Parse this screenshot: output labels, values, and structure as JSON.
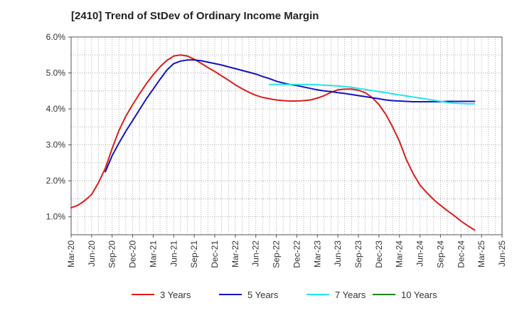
{
  "chart_data": {
    "type": "line",
    "title": "[2410]  Trend of StDev of Ordinary Income Margin",
    "xlabel": "",
    "ylabel": "",
    "x_ticks": [
      "Mar-20",
      "Jun-20",
      "Sep-20",
      "Dec-20",
      "Mar-21",
      "Jun-21",
      "Sep-21",
      "Dec-21",
      "Mar-22",
      "Jun-22",
      "Sep-22",
      "Dec-22",
      "Mar-23",
      "Jun-23",
      "Sep-23",
      "Dec-23",
      "Mar-24",
      "Jun-24",
      "Sep-24",
      "Dec-24",
      "Mar-25",
      "Jun-25"
    ],
    "y_ticks": [
      "1.0%",
      "2.0%",
      "3.0%",
      "4.0%",
      "5.0%",
      "6.0%"
    ],
    "ylim": [
      0.5,
      6.0
    ],
    "grid": true,
    "legend_position": "bottom",
    "series": [
      {
        "name": "3 Years",
        "color": "#dd1c1c",
        "points": [
          [
            "Mar-20",
            1.25
          ],
          [
            "Apr-20",
            1.32
          ],
          [
            "May-20",
            1.45
          ],
          [
            "Jun-20",
            1.62
          ],
          [
            "Jul-20",
            1.95
          ],
          [
            "Aug-20",
            2.35
          ],
          [
            "Sep-20",
            2.9
          ],
          [
            "Oct-20",
            3.4
          ],
          [
            "Nov-20",
            3.8
          ],
          [
            "Dec-20",
            4.12
          ],
          [
            "Jan-21",
            4.42
          ],
          [
            "Feb-21",
            4.7
          ],
          [
            "Mar-21",
            4.95
          ],
          [
            "Apr-21",
            5.17
          ],
          [
            "May-21",
            5.35
          ],
          [
            "Jun-21",
            5.47
          ],
          [
            "Jul-21",
            5.5
          ],
          [
            "Aug-21",
            5.47
          ],
          [
            "Sep-21",
            5.38
          ],
          [
            "Oct-21",
            5.27
          ],
          [
            "Nov-21",
            5.15
          ],
          [
            "Dec-21",
            5.04
          ],
          [
            "Jan-22",
            4.92
          ],
          [
            "Feb-22",
            4.8
          ],
          [
            "Mar-22",
            4.67
          ],
          [
            "Apr-22",
            4.56
          ],
          [
            "May-22",
            4.46
          ],
          [
            "Jun-22",
            4.38
          ],
          [
            "Jul-22",
            4.32
          ],
          [
            "Aug-22",
            4.28
          ],
          [
            "Sep-22",
            4.25
          ],
          [
            "Oct-22",
            4.23
          ],
          [
            "Nov-22",
            4.22
          ],
          [
            "Dec-22",
            4.22
          ],
          [
            "Jan-23",
            4.23
          ],
          [
            "Feb-23",
            4.25
          ],
          [
            "Mar-23",
            4.3
          ],
          [
            "Apr-23",
            4.37
          ],
          [
            "May-23",
            4.46
          ],
          [
            "Jun-23",
            4.53
          ],
          [
            "Jul-23",
            4.55
          ],
          [
            "Aug-23",
            4.55
          ],
          [
            "Sep-23",
            4.52
          ],
          [
            "Oct-23",
            4.45
          ],
          [
            "Nov-23",
            4.32
          ],
          [
            "Dec-23",
            4.12
          ],
          [
            "Jan-24",
            3.85
          ],
          [
            "Feb-24",
            3.5
          ],
          [
            "Mar-24",
            3.1
          ],
          [
            "Apr-24",
            2.6
          ],
          [
            "May-24",
            2.2
          ],
          [
            "Jun-24",
            1.88
          ],
          [
            "Jul-24",
            1.67
          ],
          [
            "Aug-24",
            1.48
          ],
          [
            "Sep-24",
            1.32
          ],
          [
            "Oct-24",
            1.17
          ],
          [
            "Nov-24",
            1.03
          ],
          [
            "Dec-24",
            0.88
          ],
          [
            "Jan-25",
            0.75
          ],
          [
            "Feb-25",
            0.63
          ]
        ]
      },
      {
        "name": "5 Years",
        "color": "#1414c0",
        "points": [
          [
            "Aug-20",
            2.25
          ],
          [
            "Sep-20",
            2.7
          ],
          [
            "Oct-20",
            3.05
          ],
          [
            "Nov-20",
            3.38
          ],
          [
            "Dec-20",
            3.68
          ],
          [
            "Jan-21",
            3.98
          ],
          [
            "Feb-21",
            4.28
          ],
          [
            "Mar-21",
            4.55
          ],
          [
            "Apr-21",
            4.82
          ],
          [
            "May-21",
            5.08
          ],
          [
            "Jun-21",
            5.26
          ],
          [
            "Jul-21",
            5.33
          ],
          [
            "Aug-21",
            5.36
          ],
          [
            "Sep-21",
            5.36
          ],
          [
            "Oct-21",
            5.34
          ],
          [
            "Nov-21",
            5.3
          ],
          [
            "Dec-21",
            5.26
          ],
          [
            "Jan-22",
            5.22
          ],
          [
            "Feb-22",
            5.17
          ],
          [
            "Mar-22",
            5.12
          ],
          [
            "Apr-22",
            5.07
          ],
          [
            "May-22",
            5.02
          ],
          [
            "Jun-22",
            4.97
          ],
          [
            "Jul-22",
            4.9
          ],
          [
            "Aug-22",
            4.84
          ],
          [
            "Sep-22",
            4.77
          ],
          [
            "Oct-22",
            4.72
          ],
          [
            "Nov-22",
            4.68
          ],
          [
            "Dec-22",
            4.65
          ],
          [
            "Jan-23",
            4.61
          ],
          [
            "Feb-23",
            4.57
          ],
          [
            "Mar-23",
            4.53
          ],
          [
            "Apr-23",
            4.5
          ],
          [
            "May-23",
            4.48
          ],
          [
            "Jun-23",
            4.45
          ],
          [
            "Jul-23",
            4.43
          ],
          [
            "Aug-23",
            4.4
          ],
          [
            "Sep-23",
            4.37
          ],
          [
            "Oct-23",
            4.34
          ],
          [
            "Nov-23",
            4.31
          ],
          [
            "Dec-23",
            4.28
          ],
          [
            "Jan-24",
            4.25
          ],
          [
            "Feb-24",
            4.23
          ],
          [
            "Mar-24",
            4.22
          ],
          [
            "Apr-24",
            4.21
          ],
          [
            "May-24",
            4.2
          ],
          [
            "Jun-24",
            4.2
          ],
          [
            "Jul-24",
            4.2
          ],
          [
            "Aug-24",
            4.2
          ],
          [
            "Sep-24",
            4.2
          ],
          [
            "Oct-24",
            4.21
          ],
          [
            "Nov-24",
            4.21
          ],
          [
            "Dec-24",
            4.21
          ],
          [
            "Jan-25",
            4.21
          ],
          [
            "Feb-25",
            4.21
          ]
        ]
      },
      {
        "name": "7 Years",
        "color": "#22e5ee",
        "points": [
          [
            "Aug-22",
            4.68
          ],
          [
            "Sep-22",
            4.68
          ],
          [
            "Oct-22",
            4.68
          ],
          [
            "Nov-22",
            4.68
          ],
          [
            "Dec-22",
            4.68
          ],
          [
            "Jan-23",
            4.68
          ],
          [
            "Feb-23",
            4.68
          ],
          [
            "Mar-23",
            4.67
          ],
          [
            "Apr-23",
            4.66
          ],
          [
            "May-23",
            4.65
          ],
          [
            "Jun-23",
            4.64
          ],
          [
            "Jul-23",
            4.62
          ],
          [
            "Aug-23",
            4.6
          ],
          [
            "Sep-23",
            4.57
          ],
          [
            "Oct-23",
            4.54
          ],
          [
            "Nov-23",
            4.51
          ],
          [
            "Dec-23",
            4.48
          ],
          [
            "Jan-24",
            4.45
          ],
          [
            "Feb-24",
            4.42
          ],
          [
            "Mar-24",
            4.39
          ],
          [
            "Apr-24",
            4.36
          ],
          [
            "May-24",
            4.33
          ],
          [
            "Jun-24",
            4.3
          ],
          [
            "Jul-24",
            4.27
          ],
          [
            "Aug-24",
            4.24
          ],
          [
            "Sep-24",
            4.21
          ],
          [
            "Oct-24",
            4.18
          ],
          [
            "Nov-24",
            4.16
          ],
          [
            "Dec-24",
            4.15
          ],
          [
            "Jan-25",
            4.14
          ],
          [
            "Feb-25",
            4.14
          ]
        ]
      },
      {
        "name": "10 Years",
        "color": "#1a8a1a",
        "points": []
      }
    ]
  }
}
